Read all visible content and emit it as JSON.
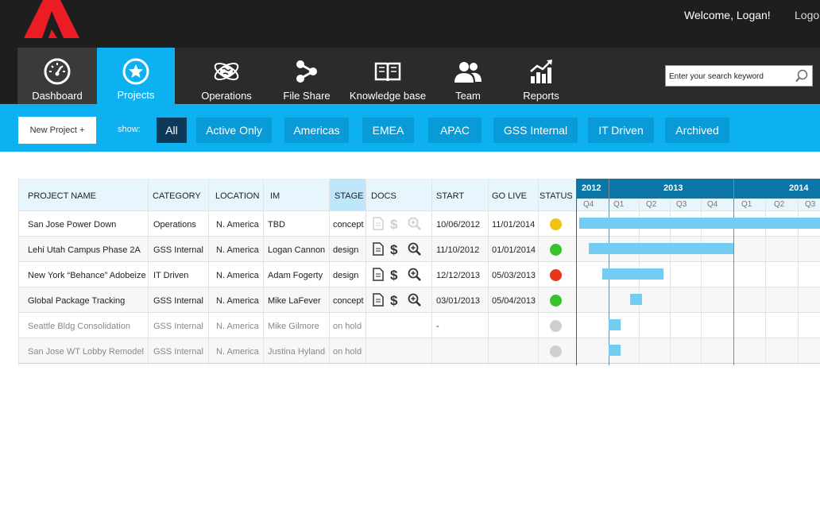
{
  "header": {
    "welcome": "Welcome, Logan!",
    "logout": "Logout"
  },
  "nav": {
    "items": [
      {
        "label": "Dashboard",
        "icon": "speedometer-icon"
      },
      {
        "label": "Projects",
        "icon": "star-icon",
        "active": true
      },
      {
        "label": "Operations",
        "icon": "globe-atom-icon"
      },
      {
        "label": "File Share",
        "icon": "share-icon"
      },
      {
        "label": "Knowledge base",
        "icon": "book-icon"
      },
      {
        "label": "Team",
        "icon": "people-icon"
      },
      {
        "label": "Reports",
        "icon": "chart-icon"
      }
    ]
  },
  "search": {
    "placeholder": "Enter your search keyword",
    "icon": "search-icon"
  },
  "filters": {
    "new_project": "New Project +",
    "show_label": "show:",
    "buttons": [
      "All",
      "Active Only",
      "Americas",
      "EMEA",
      "APAC",
      "GSS Internal",
      "IT Driven",
      "Archived"
    ],
    "active": "All"
  },
  "table": {
    "headers": [
      "PROJECT NAME",
      "CATEGORY",
      "LOCATION",
      "IM",
      "STAGE",
      "DOCS",
      "START",
      "GO LIVE",
      "STATUS"
    ],
    "rows": [
      {
        "name": "San Jose Power Down",
        "category": "Operations",
        "location": "N. America",
        "im": "TBD",
        "stage": "concept",
        "docs": "disabled",
        "start": "10/06/2012",
        "golive": "11/01/2014",
        "status": "yellow"
      },
      {
        "name": "Lehi Utah Campus Phase 2A",
        "category": "GSS Internal",
        "location": "N. America",
        "im": "Logan Cannon",
        "stage": "design",
        "docs": "enabled",
        "start": "11/10/2012",
        "golive": "01/01/2014",
        "status": "green"
      },
      {
        "name": "New York “Behance” Adobeize",
        "category": "IT Driven",
        "location": "N. America",
        "im": "Adam Fogerty",
        "stage": "design",
        "docs": "enabled",
        "start": "12/12/2013",
        "golive": "05/03/2013",
        "status": "red"
      },
      {
        "name": "Global Package Tracking",
        "category": "GSS Internal",
        "location": "N. America",
        "im": "Mike LaFever",
        "stage": "concept",
        "docs": "enabled",
        "start": "03/01/2013",
        "golive": "05/04/2013",
        "status": "green"
      },
      {
        "name": "Seattle Bldg Consolidation",
        "category": "GSS Internal",
        "location": "N. America",
        "im": "Mike Gilmore",
        "stage": "on hold",
        "docs": "none",
        "start": "-",
        "golive": "",
        "status": "gray"
      },
      {
        "name": "San Jose WT Lobby Remodel",
        "category": "GSS Internal",
        "location": "N. America",
        "im": "Justina Hyland",
        "stage": "on hold",
        "docs": "none",
        "start": "",
        "golive": "",
        "status": "gray"
      }
    ]
  },
  "gantt": {
    "years": [
      "2012",
      "2013",
      "2014"
    ],
    "quarters": [
      "Q4",
      "Q1",
      "Q2",
      "Q3",
      "Q4",
      "Q1",
      "Q2",
      "Q3"
    ],
    "bars": [
      {
        "start_quarter": 0.1,
        "end_quarter": 8.0
      },
      {
        "start_quarter": 0.4,
        "end_quarter": 5.0
      },
      {
        "start_quarter": 0.8,
        "end_quarter": 2.8
      },
      {
        "start_quarter": 1.7,
        "end_quarter": 2.1
      },
      {
        "start_quarter": 1.0,
        "end_quarter": 1.4
      },
      {
        "start_quarter": 1.0,
        "end_quarter": 1.4
      }
    ]
  },
  "colors": {
    "brand_red": "#ec1c24",
    "accent_blue": "#0db1f0",
    "active_filter": "#0c3a58",
    "status_yellow": "#f1c20f",
    "status_green": "#39c32a",
    "status_red": "#e8361d",
    "status_gray": "#cfcfcf",
    "gantt_bar": "#73cdf3"
  }
}
